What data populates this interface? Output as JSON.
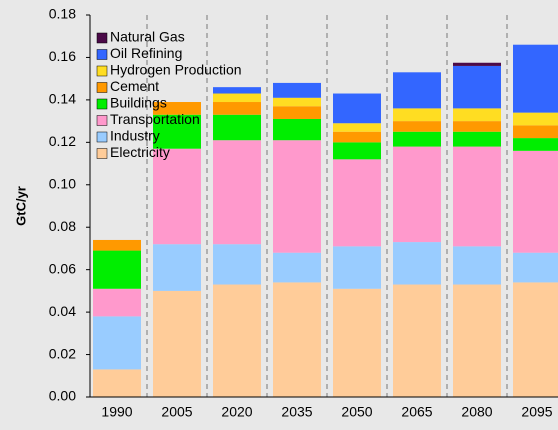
{
  "chart_data": {
    "type": "stacked_bar",
    "ylabel": "GtC/yr",
    "categories": [
      "1990",
      "2005",
      "2020",
      "2035",
      "2050",
      "2065",
      "2080",
      "2095"
    ],
    "series": [
      {
        "name": "Electricity",
        "color": "#ffcc99",
        "values": [
          0.013,
          0.05,
          0.053,
          0.054,
          0.051,
          0.053,
          0.053,
          0.054
        ]
      },
      {
        "name": "Industry",
        "color": "#99ccff",
        "values": [
          0.025,
          0.022,
          0.019,
          0.014,
          0.02,
          0.02,
          0.018,
          0.014
        ]
      },
      {
        "name": "Transportation",
        "color": "#ff99cc",
        "values": [
          0.013,
          0.045,
          0.049,
          0.053,
          0.041,
          0.045,
          0.047,
          0.048
        ]
      },
      {
        "name": "Buildings",
        "color": "#00ee00",
        "values": [
          0.018,
          0.016,
          0.012,
          0.01,
          0.008,
          0.007,
          0.007,
          0.006
        ]
      },
      {
        "name": "Cement",
        "color": "#ff9900",
        "values": [
          0.005,
          0.006,
          0.006,
          0.006,
          0.005,
          0.005,
          0.005,
          0.006
        ]
      },
      {
        "name": "Hydrogen Production",
        "color": "#ffdd22",
        "values": [
          0,
          0,
          0.004,
          0.004,
          0.004,
          0.006,
          0.006,
          0.006
        ]
      },
      {
        "name": "Oil Refining",
        "color": "#3366ff",
        "values": [
          0,
          0,
          0.003,
          0.007,
          0.014,
          0.017,
          0.02,
          0.032
        ]
      },
      {
        "name": "Natural Gas",
        "color": "#4b0a48",
        "values": [
          0,
          0,
          0,
          0,
          0,
          0,
          0.0015,
          0
        ]
      }
    ],
    "ylim": [
      0,
      0.18
    ],
    "yticks": [
      {
        "value": 0,
        "label": "0.00"
      },
      {
        "value": 0.02,
        "label": "0.02"
      },
      {
        "value": 0.04,
        "label": "0.04"
      },
      {
        "value": 0.06,
        "label": "0.06"
      },
      {
        "value": 0.08,
        "label": "0.08"
      },
      {
        "value": 0.1,
        "label": "0.10"
      },
      {
        "value": 0.12,
        "label": "0.12"
      },
      {
        "value": 0.14,
        "label": "0.14"
      },
      {
        "value": 0.16,
        "label": "0.16"
      },
      {
        "value": 0.18,
        "label": "0.18"
      }
    ],
    "grid": false,
    "legend": "upper left"
  }
}
